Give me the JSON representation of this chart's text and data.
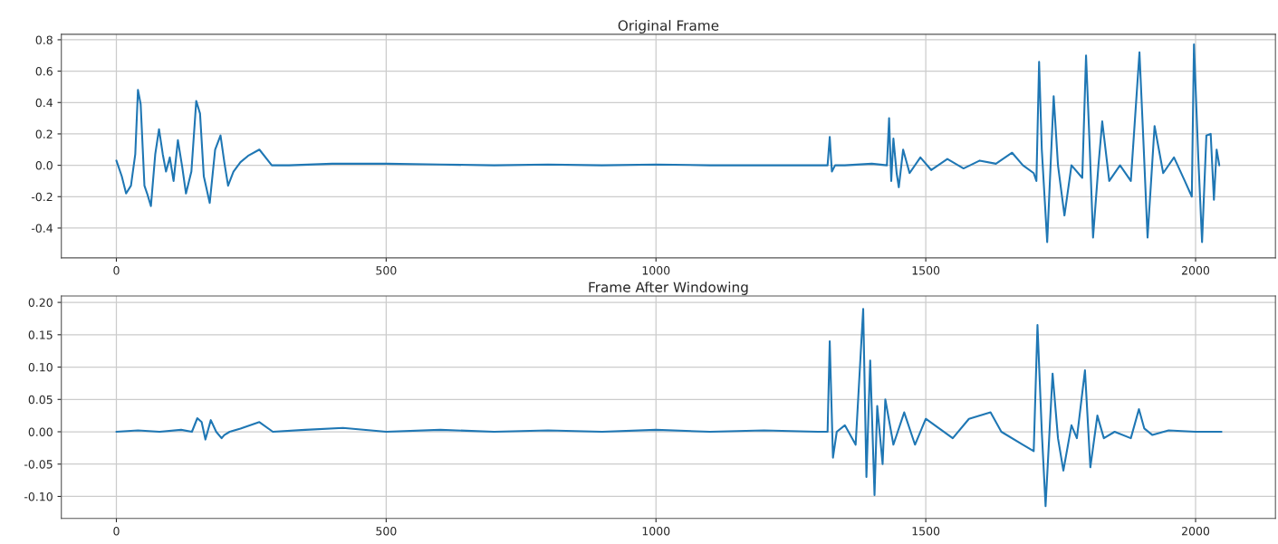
{
  "chart_data": [
    {
      "type": "line",
      "title": "Original Frame",
      "xlim": [
        -102,
        2148
      ],
      "ylim": [
        -0.59,
        0.835
      ],
      "xticks": [
        0,
        500,
        1000,
        1500,
        2000
      ],
      "yticks": [
        {
          "value": -0.4,
          "label": "-0.4"
        },
        {
          "value": -0.2,
          "label": "-0.2"
        },
        {
          "value": 0,
          "label": "0.0"
        },
        {
          "value": 0.2,
          "label": "0.2"
        },
        {
          "value": 0.4,
          "label": "0.4"
        },
        {
          "value": 0.6,
          "label": "0.6"
        },
        {
          "value": 0.8,
          "label": "0.8"
        }
      ],
      "grid": true,
      "legend": false,
      "series": [
        {
          "color": "#1f77b4",
          "x": [
            0,
            10,
            18,
            27,
            35,
            40,
            45,
            52,
            57,
            64,
            72,
            79,
            86,
            92,
            99,
            106,
            114,
            122,
            129,
            139,
            148,
            155,
            162,
            173,
            183,
            193,
            200,
            207,
            217,
            230,
            244,
            265,
            288,
            320,
            400,
            500,
            600,
            700,
            800,
            900,
            1000,
            1100,
            1200,
            1300,
            1318,
            1322,
            1326,
            1332,
            1350,
            1400,
            1428,
            1432,
            1436,
            1440,
            1446,
            1450,
            1458,
            1470,
            1490,
            1510,
            1540,
            1570,
            1600,
            1630,
            1660,
            1680,
            1700,
            1705,
            1710,
            1715,
            1725,
            1737,
            1745,
            1757,
            1770,
            1790,
            1797,
            1804,
            1810,
            1820,
            1827,
            1840,
            1860,
            1880,
            1896,
            1904,
            1911,
            1924,
            1940,
            1960,
            1980,
            1993,
            1997,
            2005,
            2012,
            2020,
            2028,
            2034,
            2039,
            2044
          ],
          "values": [
            0.03,
            -0.07,
            -0.18,
            -0.13,
            0.07,
            0.48,
            0.39,
            -0.13,
            -0.18,
            -0.26,
            0.07,
            0.23,
            0.07,
            -0.04,
            0.05,
            -0.1,
            0.16,
            -0.01,
            -0.18,
            -0.04,
            0.41,
            0.33,
            -0.07,
            -0.24,
            0.1,
            0.19,
            0.02,
            -0.13,
            -0.04,
            0.02,
            0.06,
            0.1,
            0.0,
            0.0,
            0.01,
            0.01,
            0.005,
            0.0,
            0.005,
            0.0,
            0.005,
            0.0,
            0.0,
            0.0,
            0.0,
            0.18,
            -0.04,
            0.0,
            0.0,
            0.01,
            0.0,
            0.3,
            -0.1,
            0.17,
            -0.05,
            -0.14,
            0.1,
            -0.05,
            0.05,
            -0.03,
            0.04,
            -0.02,
            0.03,
            0.01,
            0.08,
            0.0,
            -0.05,
            -0.1,
            0.66,
            0.1,
            -0.49,
            0.44,
            0.0,
            -0.32,
            0.0,
            -0.08,
            0.7,
            0.1,
            -0.46,
            0.0,
            0.28,
            -0.1,
            0.0,
            -0.1,
            0.72,
            0.1,
            -0.46,
            0.25,
            -0.05,
            0.05,
            -0.1,
            -0.2,
            0.77,
            0.05,
            -0.49,
            0.19,
            0.2,
            -0.22,
            0.1,
            0.0
          ]
        }
      ]
    },
    {
      "type": "line",
      "title": "Frame After Windowing",
      "xlim": [
        -102,
        2148
      ],
      "ylim": [
        -0.134,
        0.21
      ],
      "xticks": [
        0,
        500,
        1000,
        1500,
        2000
      ],
      "yticks": [
        {
          "value": -0.1,
          "label": "-0.10"
        },
        {
          "value": -0.05,
          "label": "-0.05"
        },
        {
          "value": 0,
          "label": "0.00"
        },
        {
          "value": 0.05,
          "label": "0.05"
        },
        {
          "value": 0.1,
          "label": "0.10"
        },
        {
          "value": 0.15,
          "label": "0.15"
        },
        {
          "value": 0.2,
          "label": "0.20"
        }
      ],
      "grid": true,
      "legend": false,
      "series": [
        {
          "color": "#1f77b4",
          "x": [
            0,
            40,
            80,
            120,
            140,
            150,
            158,
            165,
            175,
            185,
            195,
            200,
            210,
            230,
            265,
            290,
            350,
            420,
            500,
            600,
            700,
            800,
            900,
            1000,
            1100,
            1200,
            1300,
            1318,
            1322,
            1328,
            1335,
            1350,
            1370,
            1384,
            1390,
            1397,
            1405,
            1410,
            1420,
            1425,
            1440,
            1460,
            1480,
            1500,
            1550,
            1580,
            1620,
            1640,
            1680,
            1700,
            1707,
            1715,
            1722,
            1735,
            1745,
            1755,
            1770,
            1780,
            1795,
            1805,
            1818,
            1830,
            1850,
            1880,
            1895,
            1905,
            1920,
            1950,
            2000,
            2048
          ],
          "values": [
            0.0,
            0.002,
            0.0,
            0.003,
            0.0,
            0.021,
            0.015,
            -0.012,
            0.018,
            0.0,
            -0.01,
            -0.005,
            0.0,
            0.005,
            0.015,
            0.0,
            0.003,
            0.006,
            0.0,
            0.003,
            0.0,
            0.002,
            0.0,
            0.003,
            0.0,
            0.002,
            0.0,
            0.0,
            0.14,
            -0.04,
            0.0,
            0.01,
            -0.02,
            0.19,
            -0.07,
            0.11,
            -0.098,
            0.04,
            -0.05,
            0.05,
            -0.02,
            0.03,
            -0.02,
            0.02,
            -0.01,
            0.02,
            0.03,
            0.0,
            -0.02,
            -0.03,
            0.165,
            0.0,
            -0.115,
            0.09,
            -0.01,
            -0.06,
            0.01,
            -0.01,
            0.095,
            -0.055,
            0.025,
            -0.01,
            0.0,
            -0.01,
            0.035,
            0.005,
            -0.005,
            0.002,
            0.0,
            0.0
          ]
        }
      ]
    }
  ]
}
